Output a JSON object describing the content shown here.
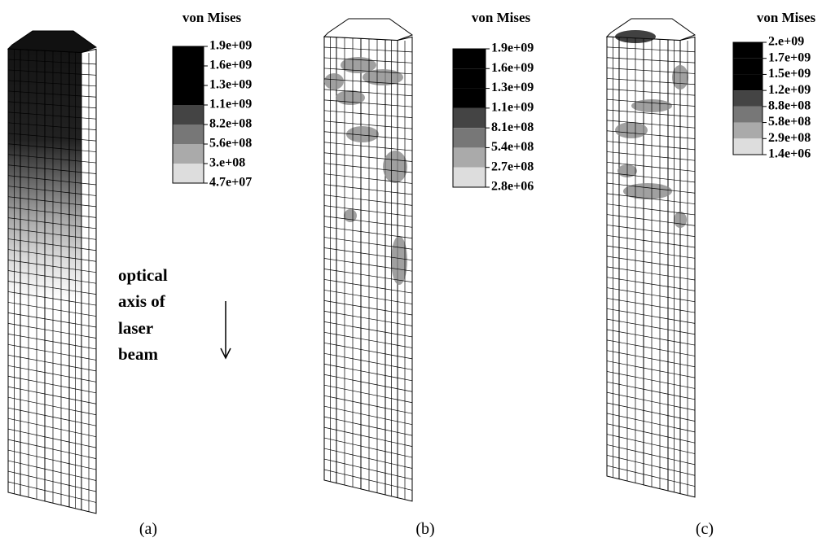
{
  "panels": [
    {
      "legend": {
        "title": "von Mises",
        "labels": [
          "1.9e+09",
          "1.6e+09",
          "1.3e+09",
          "1.1e+09",
          "8.2e+08",
          "5.6e+08",
          "3.e+08",
          "4.7e+07"
        ]
      },
      "label": "(a)"
    },
    {
      "legend": {
        "title": "von Mises",
        "labels": [
          "1.9e+09",
          "1.6e+09",
          "1.3e+09",
          "1.1e+09",
          "8.1e+08",
          "5.4e+08",
          "2.7e+08",
          "2.8e+06"
        ]
      },
      "label": "(b)"
    },
    {
      "legend": {
        "title": "von Mises",
        "labels": [
          "2.e+09",
          "1.7e+09",
          "1.5e+09",
          "1.2e+09",
          "8.8e+08",
          "5.8e+08",
          "2.9e+08",
          "1.4e+06"
        ]
      },
      "label": "(c)"
    }
  ],
  "annotation": {
    "lines": [
      "optical",
      "axis of",
      "laser",
      "beam"
    ]
  }
}
